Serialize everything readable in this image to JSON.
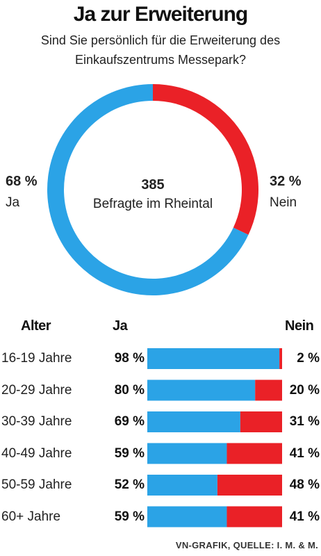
{
  "title": "Ja zur Erweiterung",
  "subtitle_line1": "Sind Sie persönlich für die Erweiterung des",
  "subtitle_line2": "Einkaufszentrums Messepark?",
  "colors": {
    "ja": "#2ba3e6",
    "nein": "#ea2127"
  },
  "chart_data": [
    {
      "type": "pie",
      "donut": true,
      "center_value": "385",
      "center_text": "Befragte im Rheintal",
      "slices": [
        {
          "label": "Ja",
          "value": 68,
          "display": "68 %"
        },
        {
          "label": "Nein",
          "value": 32,
          "display": "32 %"
        }
      ]
    },
    {
      "type": "bar",
      "stacked": true,
      "orientation": "horizontal",
      "header_category": "Alter",
      "header_yes": "Ja",
      "header_no": "Nein",
      "categories": [
        "16-19 Jahre",
        "20-29 Jahre",
        "30-39 Jahre",
        "40-49 Jahre",
        "50-59 Jahre",
        "60+ Jahre"
      ],
      "series": [
        {
          "name": "Ja",
          "values": [
            98,
            80,
            69,
            59,
            52,
            59
          ],
          "labels": [
            "98 %",
            "80 %",
            "69 %",
            "59 %",
            "52 %",
            "59 %"
          ]
        },
        {
          "name": "Nein",
          "values": [
            2,
            20,
            31,
            41,
            48,
            41
          ],
          "labels": [
            "2 %",
            "20 %",
            "31 %",
            "41 %",
            "48 %",
            "41 %"
          ]
        }
      ],
      "xlim": [
        0,
        100
      ]
    }
  ],
  "source": "VN-GRAFIK, QUELLE: I. M. & M."
}
